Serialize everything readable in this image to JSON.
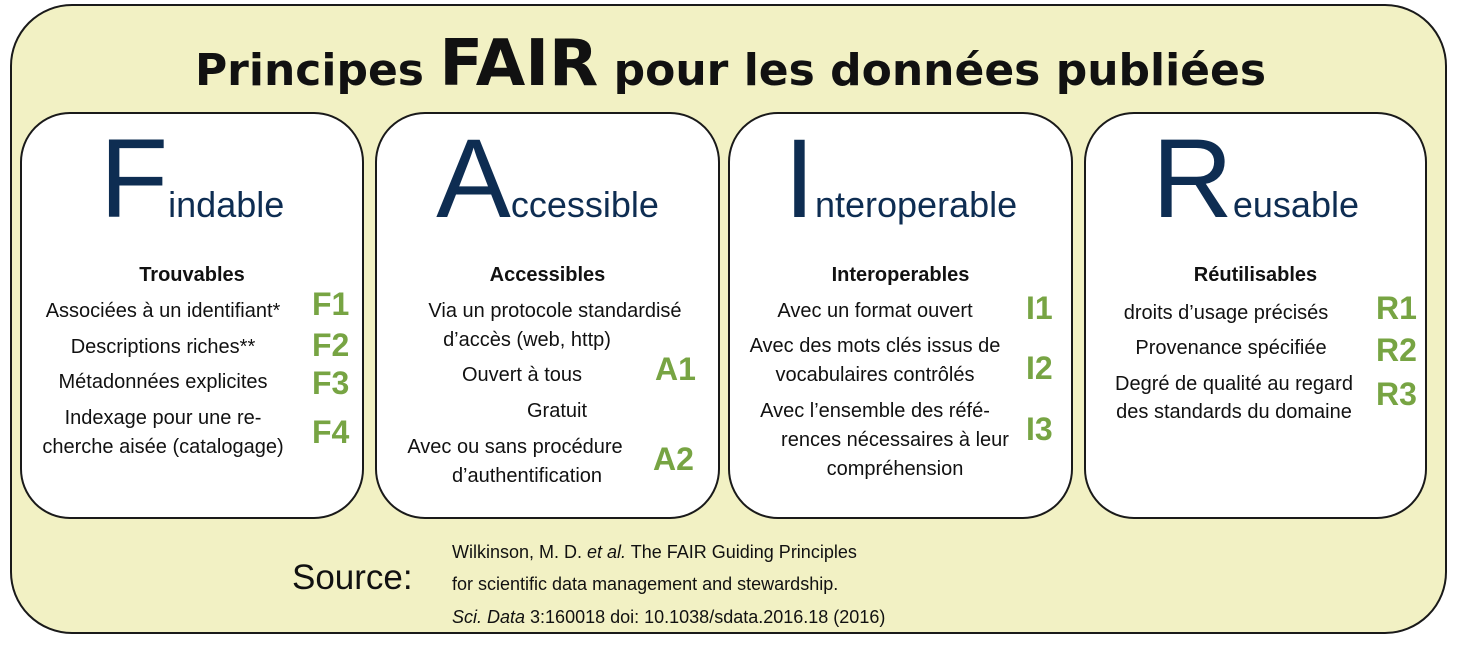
{
  "title": {
    "pre": "Principes ",
    "big": "FAIR",
    "post": " pour les données publiées"
  },
  "colors": {
    "background": "#f2f1c4",
    "heading": "#0e2d52",
    "code": "#77a443"
  },
  "columns": [
    {
      "letter": "F",
      "rest": "indable",
      "subtitle": "Trouvables",
      "lines": [
        "Associées à un identifiant*",
        "Descriptions riches**",
        "Métadonnées explicites",
        "Indexage pour une re-",
        "cherche aisée (catalogage)"
      ],
      "codes": [
        "F1",
        "F2",
        "F3",
        "F4"
      ]
    },
    {
      "letter": "A",
      "rest": "ccessible",
      "subtitle": "Accessibles",
      "lines": [
        "Via un protocole standardisé",
        "d’accès (web, http)",
        "Ouvert à tous",
        "Gratuit",
        "Avec ou sans procédure",
        "d’authentification"
      ],
      "codes": [
        "A1",
        "A2"
      ]
    },
    {
      "letter": "I",
      "rest": "nteroperable",
      "subtitle": "Interoperables",
      "lines": [
        "Avec un format ouvert",
        "Avec des mots clés issus de",
        "vocabulaires contrôlés",
        "Avec l’ensemble des réfé-",
        "rences nécessaires à leur",
        "compréhension"
      ],
      "codes": [
        "I1",
        "I2",
        "I3"
      ]
    },
    {
      "letter": "R",
      "rest": "eusable",
      "subtitle": "Réutilisables",
      "lines": [
        "droits d’usage précisés",
        "Provenance spécifiée",
        "Degré de qualité au regard",
        "des standards du domaine"
      ],
      "codes": [
        "R1",
        "R2",
        "R3"
      ]
    }
  ],
  "source": {
    "label": "Source:",
    "line1_pre": "Wilkinson, M. D. ",
    "line1_ital": "et al.",
    "line1_post": " The FAIR Guiding Principles",
    "line2": "for scientific data management and stewardship.",
    "line3_ital": "Sci. Data",
    "line3_post": " 3:160018 doi: 10.1038/sdata.2016.18 (2016)"
  }
}
